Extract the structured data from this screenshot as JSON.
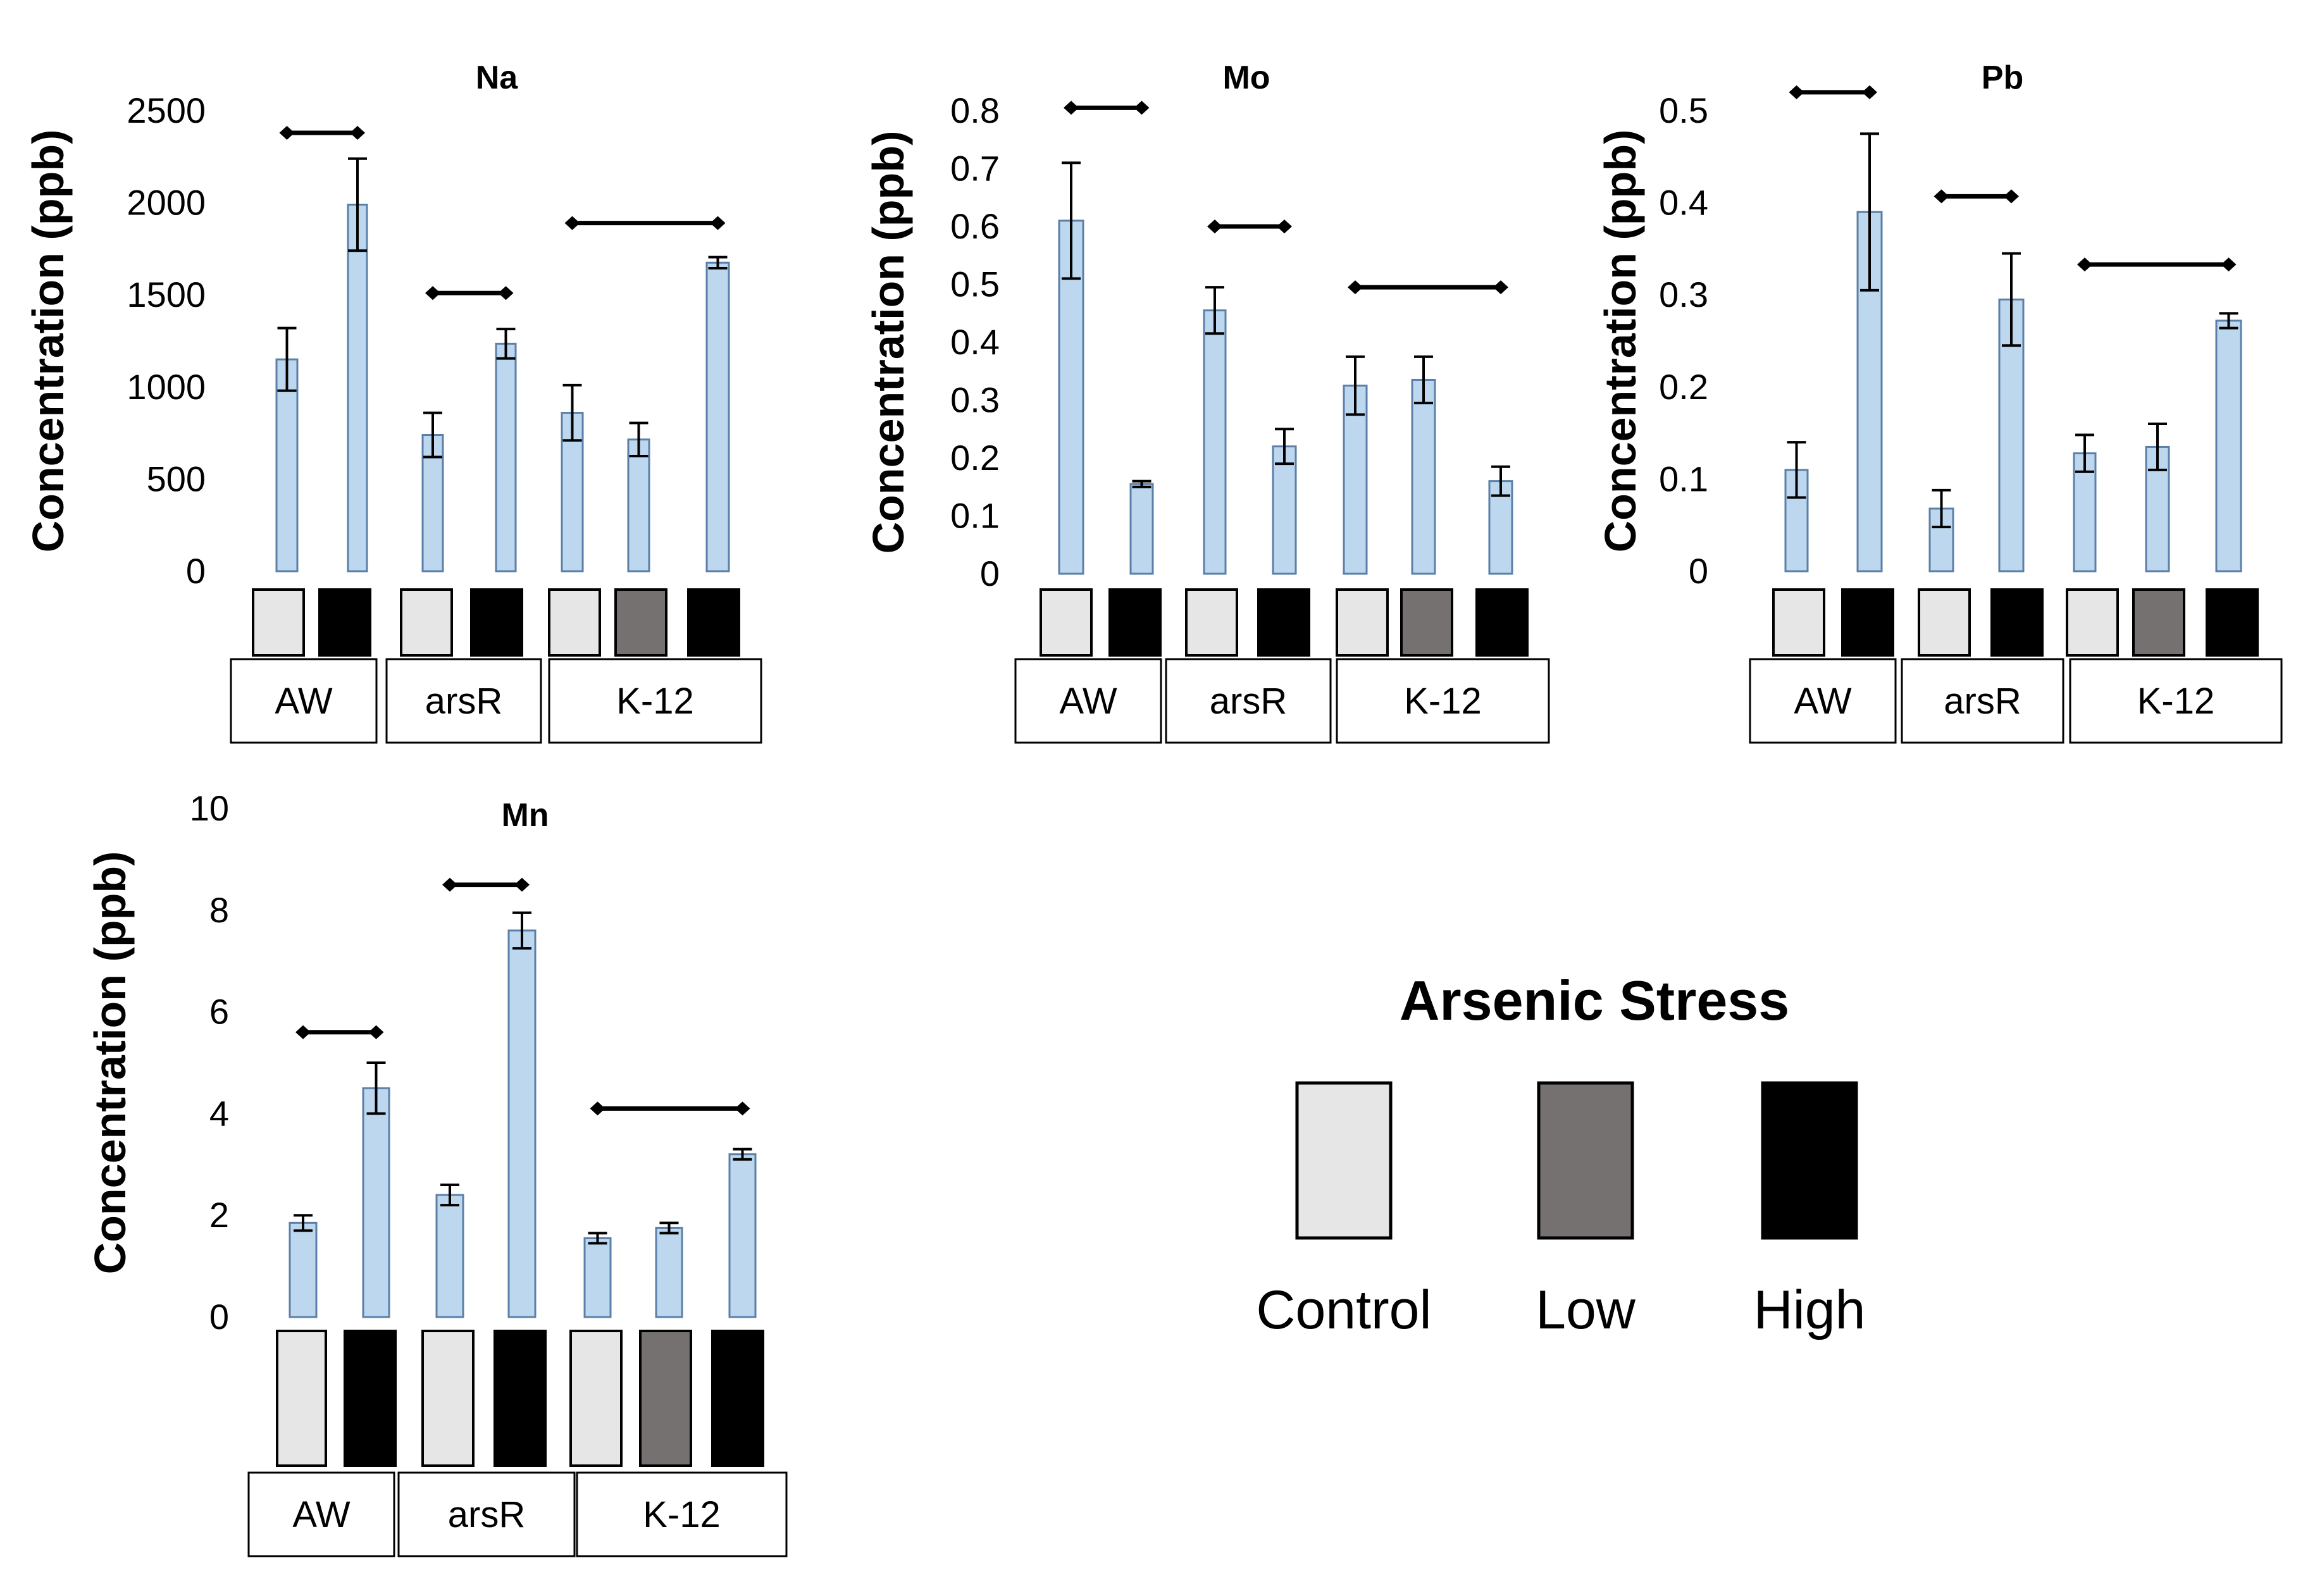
{
  "colors": {
    "bar_fill": "#bdd7ee",
    "bar_stroke": "#5b7fa8",
    "Control": "#e6e6e6",
    "Low": "#767171",
    "High": "#000000"
  },
  "legend": {
    "title": "Arsenic Stress",
    "items": [
      "Control",
      "Low",
      "High"
    ]
  },
  "chart_data": [
    {
      "type": "bar",
      "title": "Na",
      "ylabel": "Concentration (ppb)",
      "ylim": [
        0,
        2500
      ],
      "yticks": [
        0,
        500,
        1000,
        1500,
        2000,
        2500
      ],
      "groups": [
        {
          "name": "AW",
          "bars": [
            {
              "condition": "Control",
              "value": 1150,
              "error": 170
            },
            {
              "condition": "High",
              "value": 1990,
              "error": 250
            }
          ]
        },
        {
          "name": "arsR",
          "bars": [
            {
              "condition": "Control",
              "value": 740,
              "error": 120
            },
            {
              "condition": "High",
              "value": 1235,
              "error": 80
            }
          ]
        },
        {
          "name": "K-12",
          "bars": [
            {
              "condition": "Control",
              "value": 860,
              "error": 150
            },
            {
              "condition": "Low",
              "value": 715,
              "error": 90
            },
            {
              "condition": "High",
              "value": 1675,
              "error": 30
            }
          ]
        }
      ],
      "brackets": [
        {
          "group": "AW",
          "level": 2380
        },
        {
          "group": "arsR",
          "level": 1510
        },
        {
          "group": "K-12",
          "level": 1890
        }
      ]
    },
    {
      "type": "bar",
      "title": "Mo",
      "ylabel": "Concentration (ppb)",
      "ylim": [
        0,
        0.8
      ],
      "yticks": [
        0,
        0.1,
        0.2,
        0.3,
        0.4,
        0.5,
        0.6,
        0.7,
        0.8
      ],
      "groups": [
        {
          "name": "AW",
          "bars": [
            {
              "condition": "Control",
              "value": 0.61,
              "error": 0.1
            },
            {
              "condition": "High",
              "value": 0.155,
              "error": 0.005
            }
          ]
        },
        {
          "name": "arsR",
          "bars": [
            {
              "condition": "Control",
              "value": 0.455,
              "error": 0.04
            },
            {
              "condition": "High",
              "value": 0.22,
              "error": 0.03
            }
          ]
        },
        {
          "name": "K-12",
          "bars": [
            {
              "condition": "Control",
              "value": 0.325,
              "error": 0.05
            },
            {
              "condition": "Low",
              "value": 0.335,
              "error": 0.04
            },
            {
              "condition": "High",
              "value": 0.16,
              "error": 0.025
            }
          ]
        }
      ],
      "brackets": [
        {
          "group": "AW",
          "level": 0.805
        },
        {
          "group": "arsR",
          "level": 0.6
        },
        {
          "group": "K-12",
          "level": 0.495
        }
      ]
    },
    {
      "type": "bar",
      "title": "Pb",
      "ylabel": "Concentration (ppb)",
      "ylim": [
        0,
        0.5
      ],
      "yticks": [
        0,
        0.1,
        0.2,
        0.3,
        0.4,
        0.5
      ],
      "groups": [
        {
          "name": "AW",
          "bars": [
            {
              "condition": "Control",
              "value": 0.11,
              "error": 0.03
            },
            {
              "condition": "High",
              "value": 0.39,
              "error": 0.085
            }
          ]
        },
        {
          "name": "arsR",
          "bars": [
            {
              "condition": "Control",
              "value": 0.068,
              "error": 0.02
            },
            {
              "condition": "High",
              "value": 0.295,
              "error": 0.05
            }
          ]
        },
        {
          "name": "K-12",
          "bars": [
            {
              "condition": "Control",
              "value": 0.128,
              "error": 0.02
            },
            {
              "condition": "Low",
              "value": 0.135,
              "error": 0.025
            },
            {
              "condition": "High",
              "value": 0.272,
              "error": 0.008
            }
          ]
        }
      ],
      "brackets": [
        {
          "group": "AW",
          "level": 0.52
        },
        {
          "group": "arsR",
          "level": 0.407
        },
        {
          "group": "K-12",
          "level": 0.333
        }
      ]
    },
    {
      "type": "bar",
      "title": "Mn",
      "ylabel": "Concentration (ppb)",
      "ylim": [
        0,
        10
      ],
      "yticks": [
        0,
        2,
        4,
        6,
        8,
        10
      ],
      "groups": [
        {
          "name": "AW",
          "bars": [
            {
              "condition": "Control",
              "value": 1.85,
              "error": 0.15
            },
            {
              "condition": "High",
              "value": 4.5,
              "error": 0.5
            }
          ]
        },
        {
          "name": "arsR",
          "bars": [
            {
              "condition": "Control",
              "value": 2.4,
              "error": 0.2
            },
            {
              "condition": "High",
              "value": 7.6,
              "error": 0.35
            }
          ]
        },
        {
          "name": "K-12",
          "bars": [
            {
              "condition": "Control",
              "value": 1.55,
              "error": 0.1
            },
            {
              "condition": "Low",
              "value": 1.75,
              "error": 0.1
            },
            {
              "condition": "High",
              "value": 3.2,
              "error": 0.1
            }
          ]
        }
      ],
      "brackets": [
        {
          "group": "AW",
          "level": 5.6
        },
        {
          "group": "arsR",
          "level": 8.5
        },
        {
          "group": "K-12",
          "level": 4.1
        }
      ]
    }
  ]
}
